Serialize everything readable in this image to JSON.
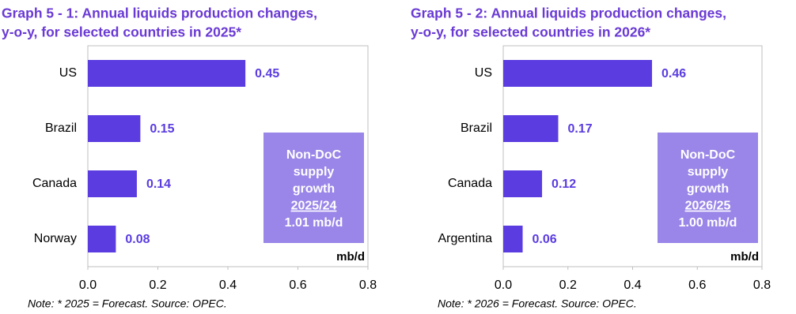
{
  "chart_data": [
    {
      "type": "hbar",
      "title": [
        "Graph 5 - 1: Annual liquids production changes,",
        "y-o-y, for selected countries in 2025*"
      ],
      "categories": [
        "US",
        "Brazil",
        "Canada",
        "Norway"
      ],
      "values": [
        0.45,
        0.15,
        0.14,
        0.08
      ],
      "color": "#5b3ce0",
      "xlim": [
        0,
        0.8
      ],
      "xticks": [
        {
          "value": 0,
          "label": "0.0"
        },
        0.2,
        0.4,
        0.6,
        0.8
      ],
      "unit_label": "mb/d",
      "annotation": [
        "Non-DoC",
        "supply",
        "growth",
        "2025/24",
        "1.01 mb/d"
      ],
      "annotation_color": "#9a85e8",
      "note": "Note: * 2025 = Forecast. Source: OPEC."
    },
    {
      "type": "hbar",
      "title": [
        "Graph 5 - 2: Annual liquids production changes,",
        "y-o-y, for selected countries in 2026*"
      ],
      "categories": [
        "US",
        "Brazil",
        "Canada",
        "Argentina"
      ],
      "values": [
        0.46,
        0.17,
        0.12,
        0.06
      ],
      "color": "#5b3ce0",
      "xlim": [
        0,
        0.8
      ],
      "xticks": [
        {
          "value": 0,
          "label": "0.0"
        },
        0.2,
        0.4,
        0.6,
        0.8
      ],
      "unit_label": "mb/d",
      "annotation": [
        "Non-DoC",
        "supply",
        "growth",
        "2026/25",
        "1.00 mb/d"
      ],
      "annotation_color": "#9a85e8",
      "note": "Note: * 2026 = Forecast. Source: OPEC."
    }
  ]
}
